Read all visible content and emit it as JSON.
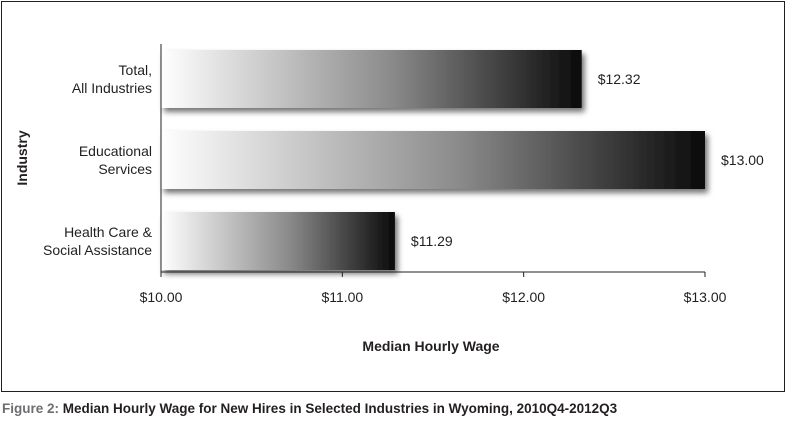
{
  "chart_data": {
    "type": "bar",
    "orientation": "horizontal",
    "categories": [
      "Total, All Industries",
      "Educational Services",
      "Health Care & Social Assistance"
    ],
    "category_lines": [
      [
        "Total,",
        "All Industries"
      ],
      [
        "Educational",
        "Services"
      ],
      [
        "Health Care &",
        "Social Assistance"
      ]
    ],
    "values": [
      12.32,
      13.0,
      11.29
    ],
    "value_labels": [
      "$12.32",
      "$13.00",
      "$11.29"
    ],
    "xlabel": "Median Hourly Wage",
    "ylabel": "Industry",
    "xlim": [
      10,
      13
    ],
    "x_ticks": [
      10,
      11,
      12,
      13
    ],
    "x_tick_labels": [
      "$10.00",
      "$11.00",
      "$12.00",
      "$13.00"
    ],
    "grid": false,
    "legend": "none",
    "bar_fill": "gradient white to black",
    "colors": {
      "bar_start": "#ffffff",
      "bar_mid": "#8a8a8a",
      "bar_end": "#0a0a0a",
      "axis": "#231f20",
      "caption_label": "#6d6e71"
    }
  },
  "caption": {
    "label": "Figure 2:",
    "title": "Median Hourly Wage for New Hires in Selected Industries in Wyoming, 2010Q4-2012Q3"
  }
}
